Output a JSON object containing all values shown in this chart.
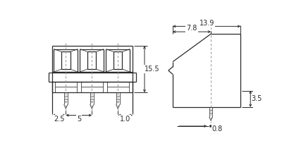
{
  "bg_color": "#ffffff",
  "lc": "#2a2a2a",
  "dc": "#2a2a2a",
  "dsh": "#888888",
  "lw_main": 0.9,
  "lw_dim": 0.7,
  "lw_thin": 0.55,
  "dims_left": {
    "h155": "15.5",
    "w25": "2.5",
    "w5": "5",
    "w10": "1.0"
  },
  "dims_right": {
    "w139": "13.9",
    "w78": "7.8",
    "h35": "3.5",
    "w08": "0.8"
  }
}
